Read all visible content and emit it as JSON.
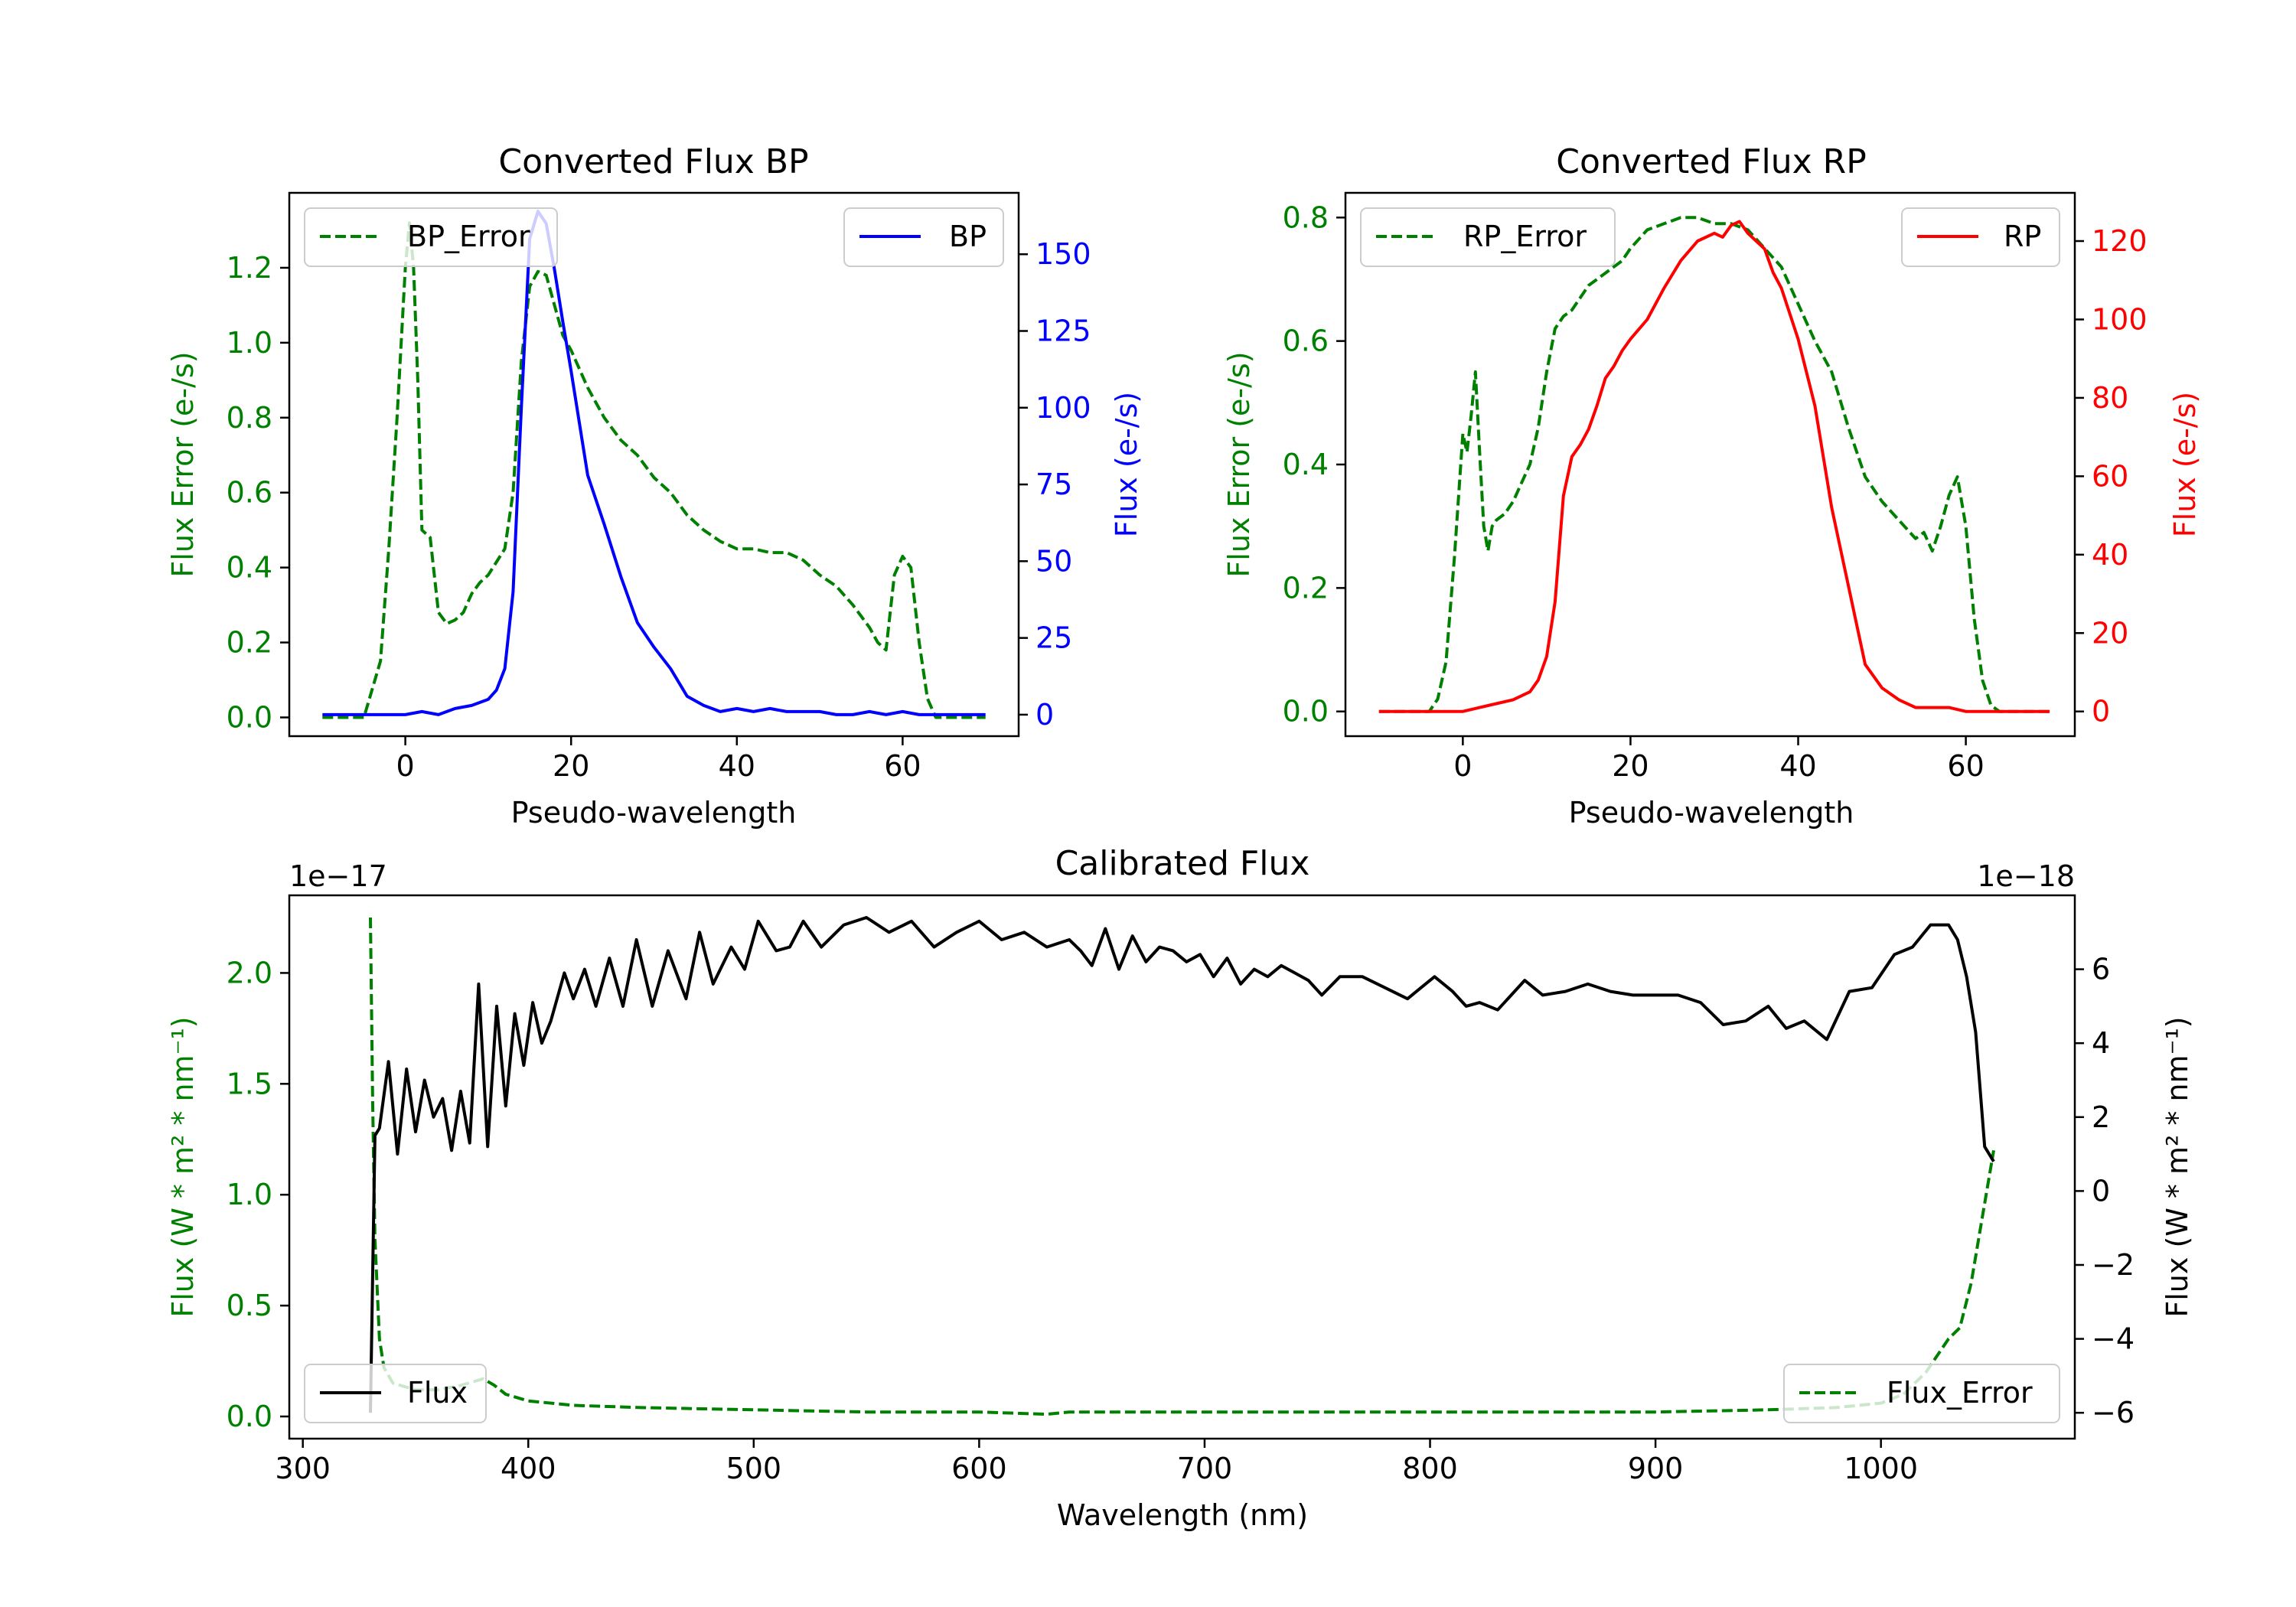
{
  "chart_data": [
    {
      "type": "line",
      "id": "bp",
      "title": "Converted Flux BP",
      "xlabel": "Pseudo-wavelength",
      "xlim": [
        -14,
        74
      ],
      "xticks": [
        0,
        20,
        40,
        60
      ],
      "left_axis": {
        "label": "Flux Error (e-/s)",
        "color": "#008000",
        "ylim": [
          -0.05,
          1.4
        ],
        "ticks": [
          0.0,
          0.2,
          0.4,
          0.6,
          0.8,
          1.0,
          1.2
        ],
        "tick_labels": [
          "0.0",
          "0.2",
          "0.4",
          "0.6",
          "0.8",
          "1.0",
          "1.2"
        ]
      },
      "right_axis": {
        "label": "Flux (e-/s)",
        "color": "#0000ff",
        "ylim": [
          -7,
          170
        ],
        "ticks": [
          0,
          25,
          50,
          75,
          100,
          125,
          150
        ],
        "tick_labels": [
          "0",
          "25",
          "50",
          "75",
          "100",
          "125",
          "150"
        ]
      },
      "series": [
        {
          "name": "BP_Error",
          "axis": "left",
          "color": "#008000",
          "dash": true,
          "legend": "top-left",
          "x": [
            -10,
            -5,
            -3,
            -2,
            -1,
            0,
            0.5,
            1,
            1.5,
            2,
            3,
            4,
            5,
            6,
            7,
            8,
            9,
            10,
            12,
            13,
            14,
            15,
            16,
            17,
            18,
            19,
            20,
            22,
            24,
            26,
            28,
            30,
            32,
            34,
            36,
            38,
            40,
            42,
            44,
            46,
            48,
            50,
            52,
            54,
            56,
            57,
            58,
            59,
            60,
            61,
            62,
            63,
            64,
            65,
            70
          ],
          "y": [
            0,
            0,
            0.15,
            0.45,
            0.8,
            1.2,
            1.32,
            1.2,
            0.9,
            0.5,
            0.48,
            0.28,
            0.25,
            0.26,
            0.28,
            0.33,
            0.36,
            0.38,
            0.45,
            0.6,
            0.95,
            1.15,
            1.19,
            1.18,
            1.1,
            1.02,
            0.98,
            0.88,
            0.8,
            0.74,
            0.7,
            0.64,
            0.6,
            0.54,
            0.5,
            0.47,
            0.45,
            0.45,
            0.44,
            0.44,
            0.42,
            0.38,
            0.35,
            0.3,
            0.24,
            0.2,
            0.18,
            0.38,
            0.43,
            0.4,
            0.2,
            0.05,
            0,
            0,
            0
          ]
        },
        {
          "name": "BP",
          "axis": "right",
          "color": "#0000ff",
          "dash": false,
          "legend": "top-right",
          "x": [
            -10,
            -5,
            0,
            2,
            4,
            6,
            8,
            10,
            11,
            12,
            13,
            14,
            15,
            16,
            17,
            18,
            19,
            20,
            22,
            24,
            26,
            28,
            30,
            32,
            34,
            36,
            38,
            40,
            42,
            44,
            46,
            48,
            50,
            52,
            54,
            56,
            58,
            60,
            62,
            64,
            66,
            70
          ],
          "y": [
            0,
            0,
            0,
            1,
            0,
            2,
            3,
            5,
            8,
            15,
            40,
            100,
            155,
            164,
            160,
            145,
            128,
            112,
            78,
            62,
            45,
            30,
            22,
            15,
            6,
            3,
            1,
            2,
            1,
            2,
            1,
            1,
            1,
            0,
            0,
            1,
            0,
            1,
            0,
            0,
            0,
            0
          ]
        }
      ]
    },
    {
      "type": "line",
      "id": "rp",
      "title": "Converted Flux RP",
      "xlabel": "Pseudo-wavelength",
      "xlim": [
        -14,
        73
      ],
      "xticks": [
        0,
        20,
        40,
        60
      ],
      "left_axis": {
        "label": "Flux Error (e-/s)",
        "color": "#008000",
        "ylim": [
          -0.04,
          0.84
        ],
        "ticks": [
          0.0,
          0.2,
          0.4,
          0.6,
          0.8
        ],
        "tick_labels": [
          "0.0",
          "0.2",
          "0.4",
          "0.6",
          "0.8"
        ]
      },
      "right_axis": {
        "label": "Flux (e-/s)",
        "color": "#ff0000",
        "ylim": [
          -6.3,
          132.3
        ],
        "ticks": [
          0,
          20,
          40,
          60,
          80,
          100,
          120
        ],
        "tick_labels": [
          "0",
          "20",
          "40",
          "60",
          "80",
          "100",
          "120"
        ]
      },
      "series": [
        {
          "name": "RP_Error",
          "axis": "left",
          "color": "#008000",
          "dash": true,
          "legend": "top-left",
          "x": [
            -10,
            -4,
            -3,
            -2,
            -1,
            0,
            0.5,
            1,
            1.5,
            2,
            2.5,
            3,
            3.5,
            4,
            5,
            6,
            7,
            8,
            9,
            10,
            11,
            12,
            13,
            14,
            15,
            16,
            17,
            18,
            19,
            20,
            22,
            24,
            26,
            28,
            30,
            32,
            34,
            36,
            38,
            40,
            42,
            44,
            46,
            48,
            50,
            52,
            54,
            55,
            56,
            57,
            58,
            59,
            60,
            61,
            62,
            63,
            64,
            65,
            70
          ],
          "y": [
            0,
            0,
            0.02,
            0.08,
            0.25,
            0.45,
            0.42,
            0.48,
            0.55,
            0.42,
            0.3,
            0.26,
            0.3,
            0.31,
            0.32,
            0.34,
            0.37,
            0.4,
            0.46,
            0.55,
            0.62,
            0.64,
            0.65,
            0.67,
            0.69,
            0.7,
            0.71,
            0.72,
            0.73,
            0.75,
            0.78,
            0.79,
            0.8,
            0.8,
            0.79,
            0.79,
            0.78,
            0.75,
            0.72,
            0.66,
            0.6,
            0.55,
            0.46,
            0.38,
            0.34,
            0.31,
            0.28,
            0.29,
            0.26,
            0.3,
            0.35,
            0.38,
            0.3,
            0.15,
            0.05,
            0.01,
            0,
            0,
            0
          ]
        },
        {
          "name": "RP",
          "axis": "right",
          "color": "#ff0000",
          "dash": false,
          "legend": "top-right",
          "x": [
            -10,
            -4,
            0,
            2,
            4,
            6,
            8,
            9,
            10,
            11,
            12,
            13,
            14,
            15,
            16,
            17,
            18,
            19,
            20,
            22,
            24,
            26,
            28,
            30,
            31,
            32,
            33,
            34,
            35,
            36,
            37,
            38,
            40,
            42,
            44,
            46,
            48,
            50,
            52,
            54,
            56,
            58,
            60,
            62,
            65,
            70
          ],
          "y": [
            0,
            0,
            0,
            1,
            2,
            3,
            5,
            8,
            14,
            28,
            55,
            65,
            68,
            72,
            78,
            85,
            88,
            92,
            95,
            100,
            108,
            115,
            120,
            122,
            121,
            124,
            125,
            122,
            120,
            118,
            112,
            108,
            95,
            78,
            52,
            32,
            12,
            6,
            3,
            1,
            1,
            1,
            0,
            0,
            0,
            0
          ]
        }
      ]
    },
    {
      "type": "line",
      "id": "cal",
      "title": "Calibrated Flux",
      "xlabel": "Wavelength (nm)",
      "xlim": [
        294,
        1086
      ],
      "xticks": [
        300,
        400,
        500,
        600,
        700,
        800,
        900,
        1000
      ],
      "left_axis": {
        "label": "Flux (W * m² * nm⁻¹)",
        "color": "#008000",
        "offset_text": "1e−17",
        "ylim": [
          -0.1,
          2.35
        ],
        "ticks": [
          0.0,
          0.5,
          1.0,
          1.5,
          2.0
        ],
        "tick_labels": [
          "0.0",
          "0.5",
          "1.0",
          "1.5",
          "2.0"
        ]
      },
      "right_axis": {
        "label": "Flux (W * m² * nm⁻¹)",
        "color": "#000000",
        "offset_text": "1e−18",
        "ylim": [
          -6.7,
          8.0
        ],
        "ticks": [
          -6,
          -4,
          -2,
          0,
          2,
          4,
          6
        ],
        "tick_labels": [
          "−6",
          "−4",
          "−2",
          "0",
          "2",
          "4",
          "6"
        ]
      },
      "series": [
        {
          "name": "Flux_Error",
          "axis": "left",
          "color": "#008000",
          "dash": true,
          "legend": "bottom-right",
          "x": [
            330,
            331,
            332,
            334,
            336,
            340,
            350,
            360,
            370,
            380,
            385,
            390,
            400,
            420,
            450,
            500,
            550,
            600,
            630,
            640,
            700,
            800,
            900,
            950,
            980,
            1000,
            1010,
            1020,
            1030,
            1035,
            1040,
            1045,
            1050
          ],
          "y": [
            2.25,
            1.4,
            0.8,
            0.35,
            0.22,
            0.15,
            0.12,
            0.12,
            0.14,
            0.17,
            0.14,
            0.1,
            0.07,
            0.05,
            0.04,
            0.03,
            0.02,
            0.02,
            0.01,
            0.02,
            0.02,
            0.02,
            0.02,
            0.03,
            0.04,
            0.06,
            0.1,
            0.2,
            0.35,
            0.4,
            0.6,
            0.9,
            1.2
          ]
        },
        {
          "name": "Flux",
          "axis": "right",
          "color": "#000000",
          "dash": false,
          "legend": "bottom-left",
          "x": [
            330,
            332,
            334,
            338,
            342,
            346,
            350,
            354,
            358,
            362,
            366,
            370,
            374,
            378,
            382,
            386,
            390,
            394,
            398,
            402,
            406,
            410,
            416,
            420,
            425,
            430,
            436,
            442,
            448,
            455,
            462,
            470,
            476,
            482,
            490,
            496,
            502,
            510,
            516,
            522,
            530,
            540,
            550,
            560,
            570,
            580,
            590,
            600,
            610,
            620,
            630,
            640,
            645,
            650,
            656,
            662,
            668,
            674,
            680,
            686,
            692,
            698,
            704,
            710,
            716,
            722,
            728,
            734,
            740,
            746,
            752,
            760,
            770,
            780,
            790,
            796,
            802,
            810,
            816,
            822,
            830,
            836,
            842,
            850,
            860,
            870,
            880,
            890,
            900,
            910,
            920,
            930,
            940,
            950,
            958,
            966,
            976,
            986,
            996,
            1006,
            1014,
            1022,
            1030,
            1034,
            1038,
            1042,
            1046,
            1050
          ],
          "y": [
            -6,
            1.5,
            1.7,
            3.5,
            1.0,
            3.3,
            1.6,
            3.0,
            2.0,
            2.5,
            1.1,
            2.7,
            1.3,
            5.6,
            1.2,
            5.0,
            2.3,
            4.8,
            3.4,
            5.1,
            4.0,
            4.6,
            5.9,
            5.2,
            6.0,
            5.0,
            6.3,
            5.0,
            6.8,
            5.0,
            6.5,
            5.2,
            7.0,
            5.6,
            6.6,
            6.0,
            7.3,
            6.5,
            6.6,
            7.3,
            6.6,
            7.2,
            7.4,
            7.0,
            7.3,
            6.6,
            7.0,
            7.3,
            6.8,
            7.0,
            6.6,
            6.8,
            6.5,
            6.1,
            7.1,
            6.0,
            6.9,
            6.2,
            6.6,
            6.5,
            6.2,
            6.4,
            5.8,
            6.3,
            5.6,
            6.0,
            5.8,
            6.1,
            5.9,
            5.7,
            5.3,
            5.8,
            5.8,
            5.5,
            5.2,
            5.5,
            5.8,
            5.4,
            5.0,
            5.1,
            4.9,
            5.3,
            5.7,
            5.3,
            5.4,
            5.6,
            5.4,
            5.3,
            5.3,
            5.3,
            5.1,
            4.5,
            4.6,
            5.0,
            4.4,
            4.6,
            4.1,
            5.4,
            5.5,
            6.4,
            6.6,
            7.2,
            7.2,
            6.8,
            5.8,
            4.3,
            1.2,
            0.8
          ]
        }
      ]
    }
  ]
}
